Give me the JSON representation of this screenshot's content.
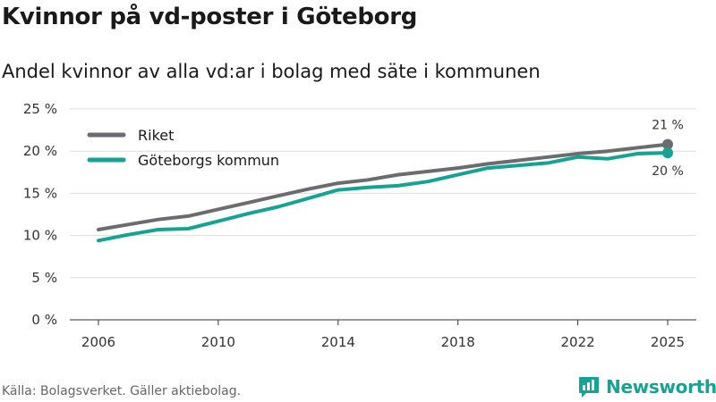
{
  "header": {
    "title": "Kvinnor på vd-poster i Göteborg",
    "subtitle": "Andel kvinnor av alla vd:ar i bolag med säte i kommunen"
  },
  "footer": {
    "source": "Källa: Bolagsverket. Gäller aktiebolag."
  },
  "brand": {
    "name": "Newsworthy",
    "color": "#16a394"
  },
  "chart_data": {
    "type": "line",
    "title": "Kvinnor på vd-poster i Göteborg",
    "subtitle": "Andel kvinnor av alla vd:ar i bolag med säte i kommunen",
    "xlabel": "",
    "ylabel": "",
    "x": [
      2006,
      2007,
      2008,
      2009,
      2010,
      2011,
      2012,
      2013,
      2014,
      2015,
      2016,
      2017,
      2018,
      2019,
      2020,
      2021,
      2022,
      2023,
      2024,
      2025
    ],
    "xticks": [
      2006,
      2010,
      2014,
      2018,
      2022,
      2025
    ],
    "xtick_labels": [
      "2006",
      "2010",
      "2014",
      "2018",
      "2022",
      "2025"
    ],
    "xlim": [
      2006,
      2025
    ],
    "ylim": [
      0,
      25
    ],
    "yticks": [
      0,
      5,
      10,
      15,
      20,
      25
    ],
    "ytick_labels": [
      "0 %",
      "5 %",
      "10 %",
      "15 %",
      "20 %",
      "25 %"
    ],
    "grid": true,
    "legend_position": "top-left",
    "series": [
      {
        "name": "Riket",
        "color": "#6b6b70",
        "values": [
          10.7,
          11.3,
          11.9,
          12.3,
          13.1,
          13.9,
          14.7,
          15.5,
          16.2,
          16.6,
          17.2,
          17.6,
          18.0,
          18.5,
          18.9,
          19.3,
          19.7,
          20.0,
          20.4,
          20.8
        ],
        "end_label": "21 %"
      },
      {
        "name": "Göteborgs kommun",
        "color": "#16a394",
        "values": [
          9.4,
          10.1,
          10.7,
          10.8,
          11.7,
          12.6,
          13.4,
          14.4,
          15.4,
          15.7,
          15.9,
          16.4,
          17.2,
          18.0,
          18.3,
          18.6,
          19.3,
          19.1,
          19.7,
          19.8
        ],
        "end_label": "20 %"
      }
    ]
  }
}
